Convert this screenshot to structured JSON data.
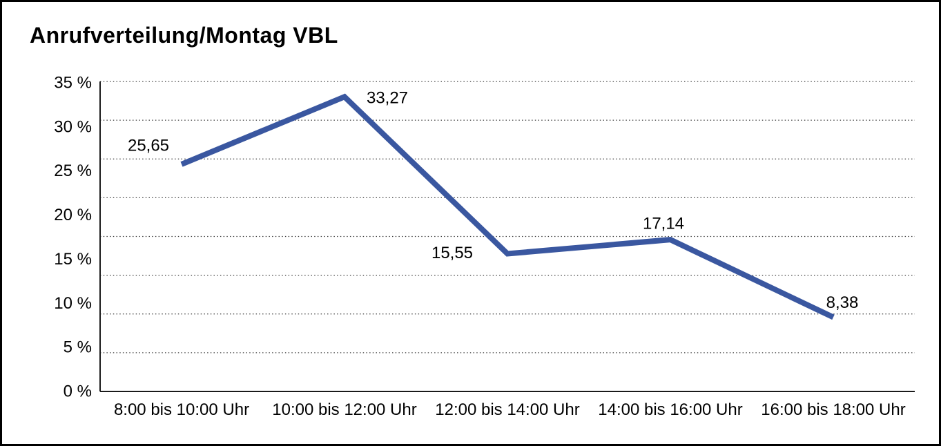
{
  "title": "Anrufverteilung/Montag VBL",
  "chart_data": {
    "type": "line",
    "title": "Anrufverteilung/Montag VBL",
    "categories": [
      "8:00 bis 10:00 Uhr",
      "10:00 bis 12:00 Uhr",
      "12:00 bis 14:00 Uhr",
      "14:00 bis 16:00 Uhr",
      "16:00 bis 18:00 Uhr"
    ],
    "series": [
      {
        "name": "Anrufverteilung Montag VBL",
        "values": [
          25.65,
          33.27,
          15.55,
          17.14,
          8.38
        ]
      }
    ],
    "data_labels": [
      "25,65",
      "33,27",
      "15,55",
      "17,14",
      "8,38"
    ],
    "y_tick_labels": [
      "35 %",
      "30 %",
      "25 %",
      "20 %",
      "15 %",
      "10 %",
      "5 %",
      "0 %"
    ],
    "ylim": [
      0,
      35
    ],
    "xlabel": "",
    "ylabel": "",
    "grid": "horizontal-dotted",
    "legend": "none",
    "line_color": "#3A57A0",
    "axis_color": "#1a1a1a",
    "grid_color": "#3c3c3c"
  }
}
